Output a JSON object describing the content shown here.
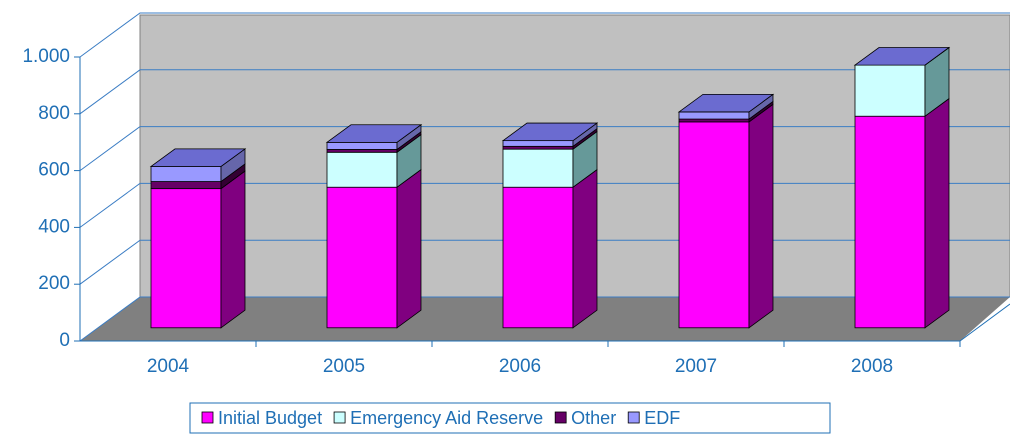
{
  "chart_data": {
    "type": "bar3d_stacked",
    "categories": [
      "2004",
      "2005",
      "2006",
      "2007",
      "2008"
    ],
    "series": [
      {
        "name": "Initial Budget",
        "color": "#ff00ff",
        "side_color": "#800080",
        "values": [
          490,
          495,
          495,
          725,
          745
        ]
      },
      {
        "name": "Emergency Aid Reserve",
        "color": "#ccffff",
        "side_color": "#669999",
        "values": [
          0,
          123,
          134,
          0,
          180
        ]
      },
      {
        "name": "Other",
        "color": "#660066",
        "side_color": "#330033",
        "values": [
          25,
          10,
          10,
          10,
          0
        ]
      },
      {
        "name": "EDF",
        "color": "#9999ff",
        "side_color": "#6666aa",
        "values": [
          53,
          25,
          20,
          25,
          0
        ]
      }
    ],
    "ylim": [
      0,
      1000
    ],
    "yticks": [
      0,
      200,
      400,
      600,
      800,
      {
        "value": 1000,
        "label": "1.000"
      }
    ],
    "grid": true,
    "legend": "bottom"
  }
}
